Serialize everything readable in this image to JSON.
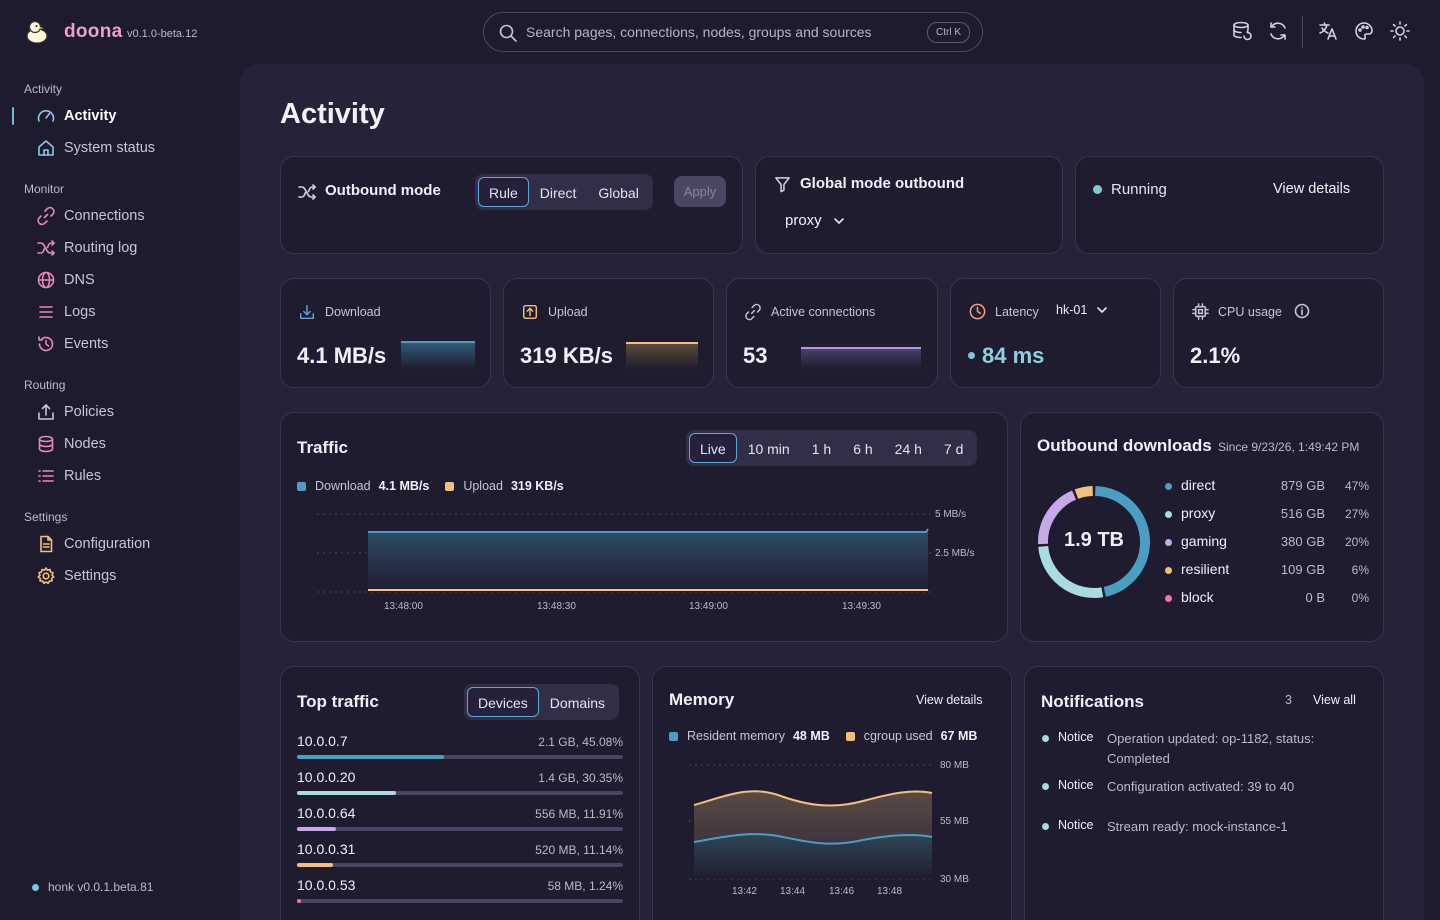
{
  "app": {
    "name": "doona",
    "version": "v0.1.0-beta.12"
  },
  "search": {
    "placeholder": "Search pages, connections, nodes, groups and sources",
    "shortcut": "Ctrl K"
  },
  "toolbar": {
    "icons": [
      "database-sync-icon",
      "refresh-icon",
      "translate-icon",
      "palette-icon",
      "sun-icon"
    ]
  },
  "sidebar": {
    "sections": [
      {
        "title": "Activity",
        "items": [
          {
            "label": "Activity",
            "icon": "gauge-icon",
            "active": true
          },
          {
            "label": "System status",
            "icon": "home-icon"
          }
        ]
      },
      {
        "title": "Monitor",
        "items": [
          {
            "label": "Connections",
            "icon": "link-icon"
          },
          {
            "label": "Routing log",
            "icon": "shuffle-icon"
          },
          {
            "label": "DNS",
            "icon": "globe-icon"
          },
          {
            "label": "Logs",
            "icon": "list-icon"
          },
          {
            "label": "Events",
            "icon": "history-icon"
          }
        ]
      },
      {
        "title": "Routing",
        "items": [
          {
            "label": "Policies",
            "icon": "upload-icon"
          },
          {
            "label": "Nodes",
            "icon": "database-icon"
          },
          {
            "label": "Rules",
            "icon": "list-check-icon"
          }
        ]
      },
      {
        "title": "Settings",
        "items": [
          {
            "label": "Configuration",
            "icon": "file-icon"
          },
          {
            "label": "Settings",
            "icon": "gear-icon"
          }
        ]
      }
    ],
    "footer": "honk v0.0.1.beta.81"
  },
  "page": {
    "title": "Activity"
  },
  "outbound_mode": {
    "title": "Outbound mode",
    "options": [
      "Rule",
      "Direct",
      "Global"
    ],
    "selected": "Rule",
    "apply_label": "Apply"
  },
  "global_mode": {
    "title": "Global mode outbound",
    "value": "proxy"
  },
  "status": {
    "label": "Running",
    "details_label": "View details",
    "color": "#7ec9d8"
  },
  "stats": {
    "download": {
      "label": "Download",
      "value": "4.1 MB/s"
    },
    "upload": {
      "label": "Upload",
      "value": "319 KB/s"
    },
    "connections": {
      "label": "Active connections",
      "value": "53"
    },
    "latency": {
      "label": "Latency",
      "node": "hk-01",
      "value": "84 ms"
    },
    "cpu": {
      "label": "CPU usage",
      "value": "2.1%"
    }
  },
  "traffic": {
    "title": "Traffic",
    "ranges": [
      "Live",
      "10 min",
      "1 h",
      "6 h",
      "24 h",
      "7 d"
    ],
    "selected_range": "Live",
    "legend": {
      "download_label": "Download",
      "download_value": "4.1 MB/s",
      "upload_label": "Upload",
      "upload_value": "319 KB/s"
    },
    "y_ticks": [
      "5 MB/s",
      "2.5 MB/s"
    ],
    "x_ticks": [
      "13:48:00",
      "13:48:30",
      "13:49:00",
      "13:49:30"
    ]
  },
  "outbound_downloads": {
    "title": "Outbound downloads",
    "since": "Since 9/23/26, 1:49:42 PM",
    "total": "1.9 TB",
    "items": [
      {
        "name": "direct",
        "amount": "879 GB",
        "pct": "47%",
        "color": "#4a9ec4"
      },
      {
        "name": "proxy",
        "amount": "516 GB",
        "pct": "27%",
        "color": "#a8dce0"
      },
      {
        "name": "gaming",
        "amount": "380 GB",
        "pct": "20%",
        "color": "#c8a8e8"
      },
      {
        "name": "resilient",
        "amount": "109 GB",
        "pct": "6%",
        "color": "#f2c07a"
      },
      {
        "name": "block",
        "amount": "0 B",
        "pct": "0%",
        "color": "#f0789c"
      }
    ]
  },
  "top_traffic": {
    "title": "Top traffic",
    "tabs": [
      "Devices",
      "Domains"
    ],
    "selected_tab": "Devices",
    "rows": [
      {
        "name": "10.0.0.7",
        "detail": "2.1 GB, 45.08%",
        "frac": 0.4508,
        "color": "#4a9ec4"
      },
      {
        "name": "10.0.0.20",
        "detail": "1.4 GB, 30.35%",
        "frac": 0.3035,
        "color": "#a8dce0"
      },
      {
        "name": "10.0.0.64",
        "detail": "556 MB, 11.91%",
        "frac": 0.1191,
        "color": "#c8a8e8"
      },
      {
        "name": "10.0.0.31",
        "detail": "520 MB, 11.14%",
        "frac": 0.1114,
        "color": "#f2c07a"
      },
      {
        "name": "10.0.0.53",
        "detail": "58 MB, 1.24%",
        "frac": 0.0124,
        "color": "#f0789c"
      }
    ]
  },
  "memory": {
    "title": "Memory",
    "details_label": "View details",
    "legend": {
      "resident_label": "Resident memory",
      "resident_value": "48 MB",
      "cgroup_label": "cgroup used",
      "cgroup_value": "67 MB"
    },
    "y_ticks": [
      "80 MB",
      "55 MB",
      "30 MB"
    ],
    "x_ticks": [
      "13:42",
      "13:44",
      "13:46",
      "13:48"
    ]
  },
  "notifications": {
    "title": "Notifications",
    "count": "3",
    "view_all": "View all",
    "items": [
      {
        "level": "Notice",
        "text": "Operation updated: op-1182, status: Completed"
      },
      {
        "level": "Notice",
        "text": "Configuration activated: 39 to 40"
      },
      {
        "level": "Notice",
        "text": "Stream ready: mock-instance-1"
      }
    ]
  }
}
